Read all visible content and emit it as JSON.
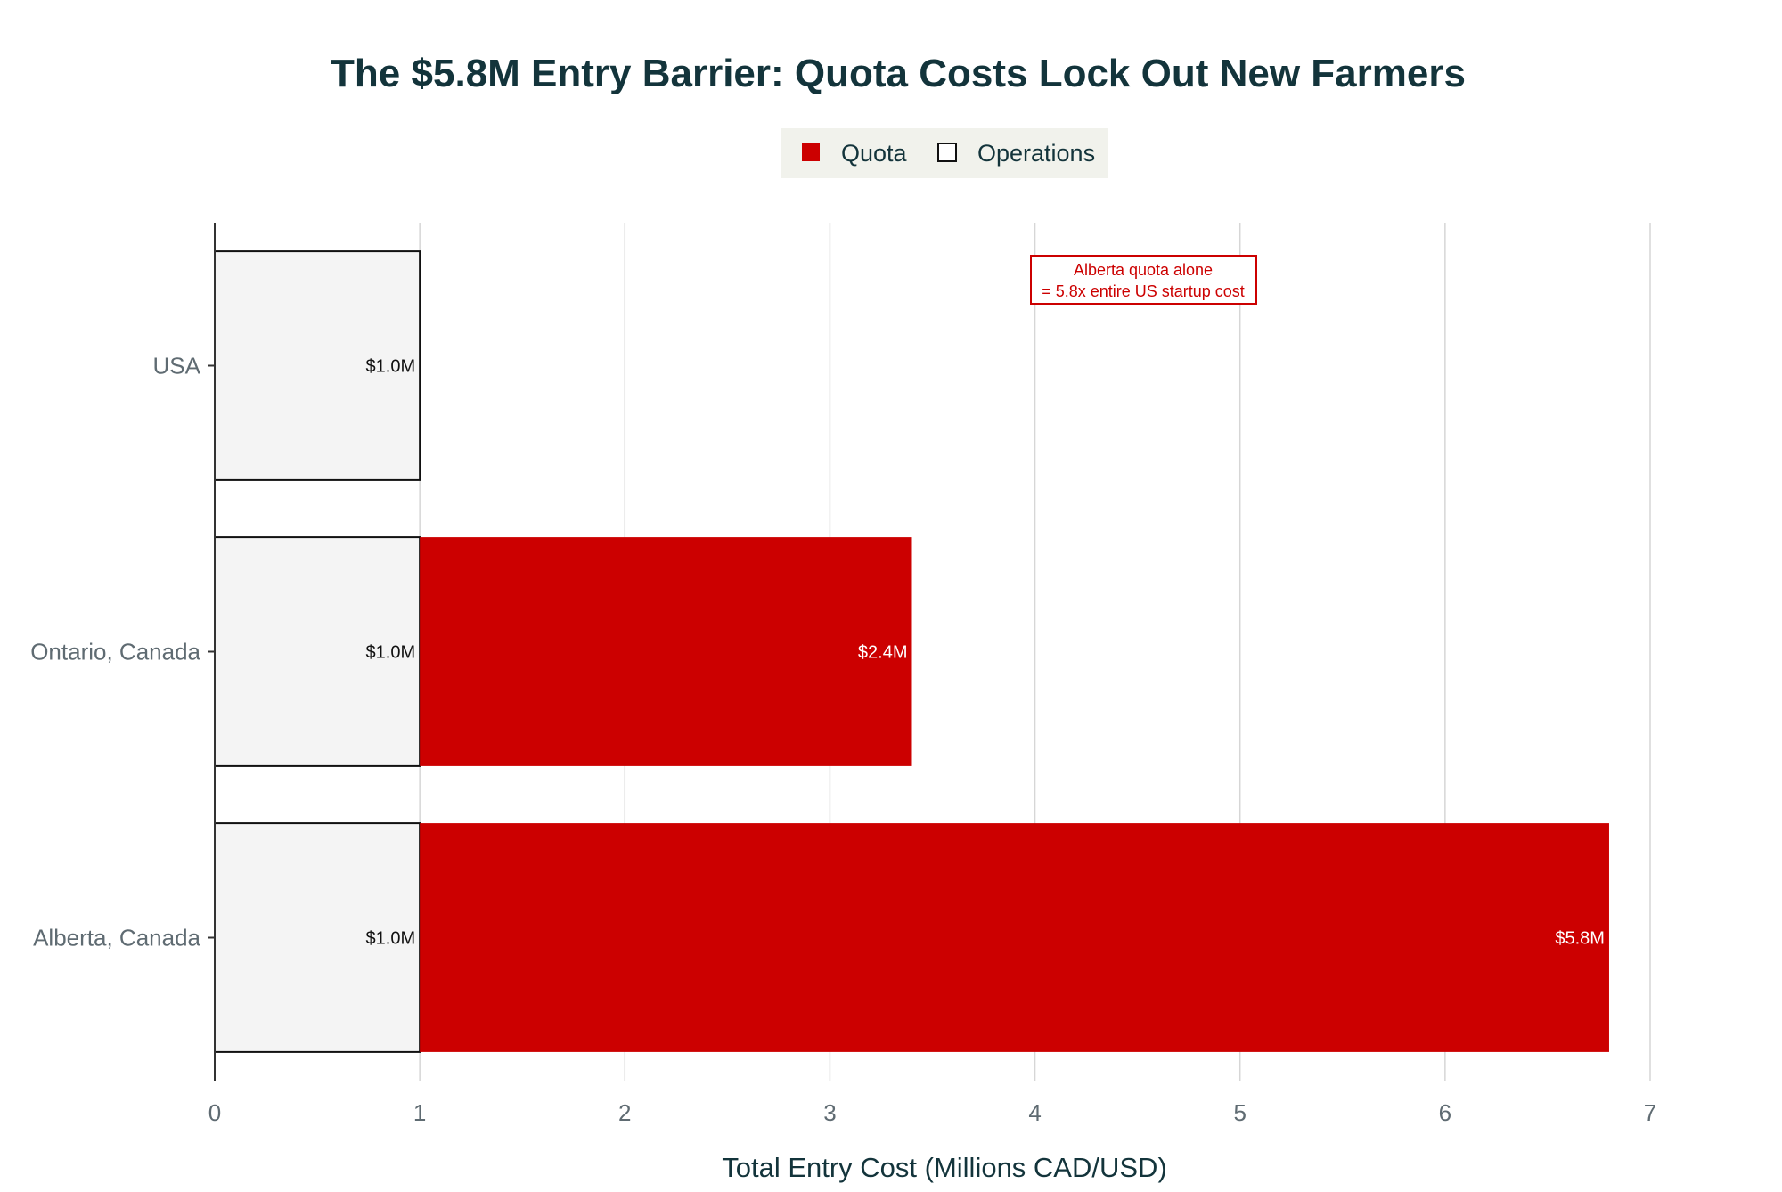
{
  "chart_data": {
    "type": "bar",
    "orientation": "horizontal",
    "stacked": true,
    "title": "The $5.8M Entry Barrier: Quota Costs Lock Out New Farmers",
    "xlabel": "Total Entry Cost (Millions CAD/USD)",
    "ylabel": "",
    "xlim": [
      0,
      7
    ],
    "x_ticks": [
      "0",
      "1",
      "2",
      "3",
      "4",
      "5",
      "6",
      "7"
    ],
    "categories": [
      "USA",
      "Ontario, Canada",
      "Alberta, Canada"
    ],
    "series": [
      {
        "name": "Operations",
        "color": "#f4f4f4",
        "values": [
          1.0,
          1.0,
          1.0
        ],
        "labels": [
          "$1.0M",
          "$1.0M",
          "$1.0M"
        ]
      },
      {
        "name": "Quota",
        "color": "#cc0000",
        "values": [
          0,
          2.4,
          5.8
        ],
        "labels": [
          "",
          "$2.4M",
          "$5.8M"
        ]
      }
    ],
    "legend": {
      "position": "top-center",
      "order": [
        "Quota",
        "Operations"
      ]
    },
    "annotation": {
      "lines": [
        "Alberta quota alone",
        "= 5.8x entire US startup cost"
      ],
      "x": 4.55,
      "color": "#cc0000"
    },
    "grid": "vertical",
    "colors": {
      "title": "#13343b",
      "axis_text": "#5f6b72",
      "grid": "#d6d6d6",
      "legend_bg": "#f1f2ec"
    }
  }
}
